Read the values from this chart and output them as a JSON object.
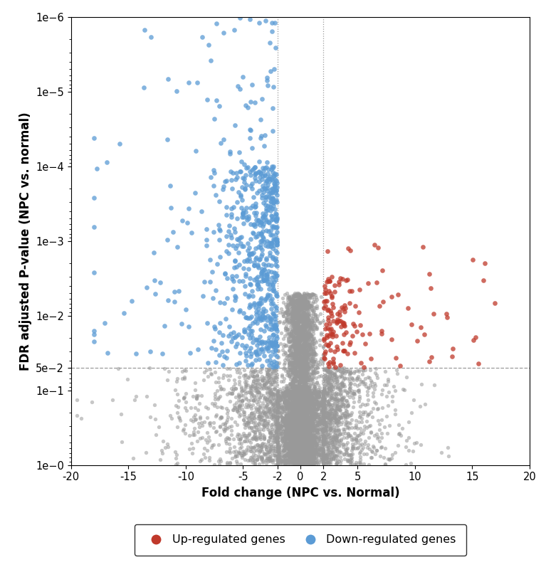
{
  "xlabel": "Fold change (NPC vs. Normal)",
  "ylabel": "FDR adjusted P-value (NPC vs. normal)",
  "xlim": [
    -20,
    20
  ],
  "fc_threshold": 2,
  "pval_threshold": 0.05,
  "up_color": "#c0392b",
  "down_color": "#5b9bd5",
  "gray_color": "#999999",
  "dot_size": 15,
  "dot_alpha": 0.75,
  "legend_labels": [
    "Up-regulated genes",
    "Down-regulated genes"
  ],
  "yticks": [
    1e-06,
    1e-05,
    0.0001,
    0.001,
    0.01,
    0.05,
    0.1,
    1.0
  ],
  "ytick_labels": [
    "1e−6",
    "1e−5",
    "1e−4",
    "1e−3",
    "1e−2",
    "5e−2",
    "1e−1",
    "1e−0"
  ],
  "xticks": [
    -20,
    -15,
    -10,
    -5,
    -2,
    0,
    2,
    5,
    10,
    15,
    20
  ],
  "seed": 42,
  "background_color": "#ffffff"
}
